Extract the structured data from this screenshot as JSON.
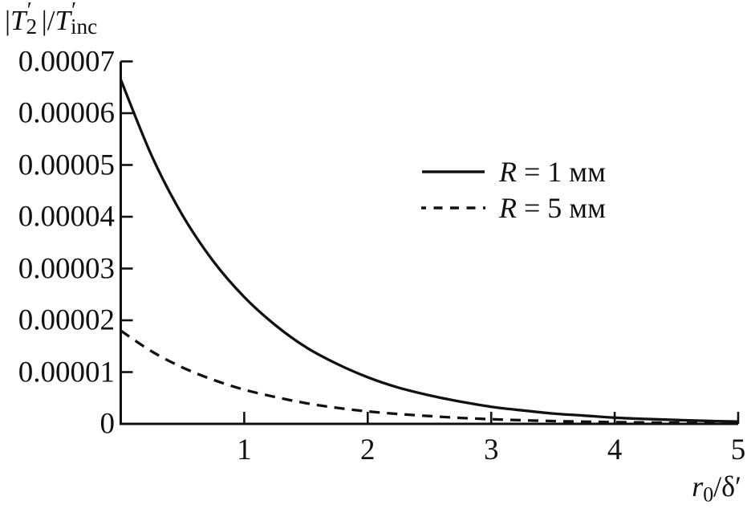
{
  "figure": {
    "background": "#ffffff",
    "ink": "#111111"
  },
  "y_axis_title": {
    "open_bar": "|",
    "t": "T",
    "t_prime": "′",
    "t_sub": "2",
    "bar_slash": "|/",
    "t2": "T",
    "t2_prime": "′",
    "t2_sub": "inc"
  },
  "x_axis_title": {
    "var": "r",
    "sub": "0",
    "rest": "/δ′"
  },
  "legend": {
    "items": [
      {
        "line": "solid",
        "r": "R",
        "rest": " = 1 мм"
      },
      {
        "line": "dashed",
        "r": "R",
        "rest": " = 5 мм"
      }
    ]
  },
  "chart_data": {
    "type": "line",
    "title": "",
    "xlabel": "r0/δ′",
    "ylabel": "|T′2|/T′inc",
    "xlim": [
      0,
      5
    ],
    "ylim": [
      0,
      7e-05
    ],
    "grid": false,
    "legend_position": "upper right inside",
    "x_ticks": [
      {
        "label": "1",
        "value": 1
      },
      {
        "label": "2",
        "value": 2
      },
      {
        "label": "3",
        "value": 3
      },
      {
        "label": "4",
        "value": 4
      },
      {
        "label": "5",
        "value": 5
      }
    ],
    "y_ticks": [
      {
        "label": "0.00007",
        "value": 7e-05
      },
      {
        "label": "0.00006",
        "value": 6e-05
      },
      {
        "label": "0.00005",
        "value": 5e-05
      },
      {
        "label": "0.00004",
        "value": 4e-05
      },
      {
        "label": "0.00003",
        "value": 3e-05
      },
      {
        "label": "0.00002",
        "value": 2e-05
      },
      {
        "label": "0.00001",
        "value": 1e-05
      },
      {
        "label": "0",
        "value": 0
      }
    ],
    "x": [
      0,
      0.25,
      0.5,
      0.75,
      1,
      1.25,
      1.5,
      1.75,
      2,
      2.25,
      2.5,
      2.75,
      3,
      3.25,
      3.5,
      3.75,
      4,
      4.25,
      4.5,
      4.75,
      5
    ],
    "series": [
      {
        "name": "R = 1 мм",
        "style": "solid",
        "values": [
          6.65e-05,
          5.18e-05,
          4.03e-05,
          3.14e-05,
          2.45e-05,
          1.91e-05,
          1.48e-05,
          1.16e-05,
          9e-06,
          7e-06,
          5.5e-06,
          4.3e-06,
          3.3e-06,
          2.6e-06,
          2e-06,
          1.6e-06,
          1.2e-06,
          9.5e-07,
          7.4e-07,
          5.8e-07,
          4.5e-07
        ]
      },
      {
        "name": "R = 5 мм",
        "style": "dashed",
        "values": [
          1.8e-05,
          1.4e-05,
          1.09e-05,
          8.5e-06,
          6.6e-06,
          5.2e-06,
          4e-06,
          3.1e-06,
          2.4e-06,
          1.9e-06,
          1.5e-06,
          1.15e-06,
          9e-07,
          7e-07,
          5.4e-07,
          4.2e-07,
          3.3e-07,
          2.6e-07,
          2e-07,
          1.6e-07,
          1.2e-07
        ]
      }
    ]
  }
}
